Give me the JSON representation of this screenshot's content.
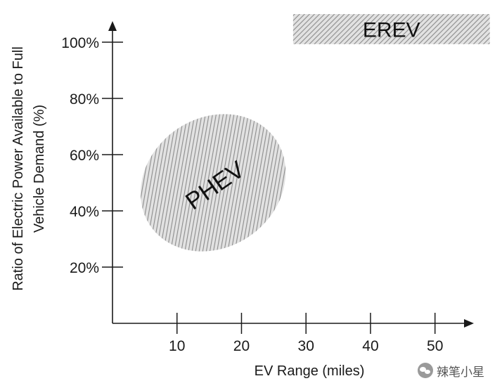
{
  "chart_data": {
    "type": "scatter",
    "xlabel": "EV Range (miles)",
    "ylabel_lines": [
      "Ratio of Electric Power Available to Full",
      "Vehicle Demand (%)"
    ],
    "x_ticks": [
      "10",
      "20",
      "30",
      "40",
      "50"
    ],
    "y_ticks": [
      "20%",
      "40%",
      "60%",
      "80%",
      "100%"
    ],
    "x_tick_values": [
      10,
      20,
      30,
      40,
      50
    ],
    "y_tick_values": [
      20,
      40,
      60,
      80,
      100
    ],
    "xlim": [
      0,
      55
    ],
    "ylim": [
      0,
      105
    ],
    "grid": false,
    "regions": [
      {
        "label": "PHEV",
        "shape": "ellipse",
        "center": [
          15.6,
          50
        ],
        "radius_x": 11.8,
        "radius_y": 23,
        "rotation_deg": -35,
        "fill": "hatched-gray"
      },
      {
        "label": "EREV",
        "shape": "rectangle",
        "x_range": [
          28,
          58.5
        ],
        "y_range": [
          99.3,
          110
        ],
        "fill": "hatched-gray"
      }
    ],
    "colors": {
      "axis": "#1a1a1a",
      "hatch_line": "#8c8c8c",
      "hatch_bg": "#e2e2e2"
    }
  },
  "watermark": {
    "text": "辣笔小星",
    "icon": "wechat-icon"
  }
}
